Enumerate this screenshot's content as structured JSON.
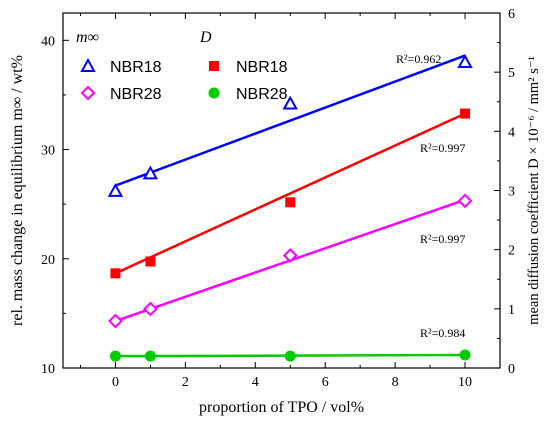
{
  "chart_data": {
    "type": "scatter",
    "xlabel": "proportion of TPO / vol%",
    "ylabel_left": "rel. mass change in equilibrium m∞ / wt%",
    "ylabel_right": "mean diffusion coefficient D × 10⁻⁶ / mm² s⁻¹",
    "xlim": [
      -1.5,
      11
    ],
    "ylim_left": [
      10,
      42.5
    ],
    "ylim_right": [
      0,
      6
    ],
    "x_ticks": [
      0,
      2,
      4,
      6,
      8,
      10
    ],
    "y_ticks_left": [
      10,
      20,
      30,
      40
    ],
    "y_ticks_right": [
      0,
      1,
      2,
      3,
      4,
      5,
      6
    ],
    "grid": false,
    "legend": {
      "placement": "top-left",
      "group_m": "m∞",
      "group_d": "D",
      "entries": [
        "NBR18",
        "NBR28",
        "NBR18",
        "NBR28"
      ]
    },
    "series": [
      {
        "name": "NBR18",
        "group": "m∞",
        "axis": "left",
        "marker": "triangle-open",
        "color": "#0000ff",
        "x": [
          0,
          1,
          5,
          10
        ],
        "y": [
          26.2,
          27.8,
          34.2,
          38.0
        ],
        "fit": [
          [
            0,
            26.7
          ],
          [
            10,
            38.6
          ]
        ],
        "r2": "R²=0.962"
      },
      {
        "name": "NBR28",
        "group": "m∞",
        "axis": "left",
        "marker": "diamond-open",
        "color": "#ff00ff",
        "x": [
          0,
          1,
          5,
          10
        ],
        "y": [
          14.3,
          15.4,
          20.3,
          25.3
        ],
        "fit": [
          [
            0,
            14.3
          ],
          [
            10,
            25.4
          ]
        ],
        "r2": "R²=0.997"
      },
      {
        "name": "NBR18",
        "group": "D",
        "axis": "right",
        "marker": "square",
        "color": "#ff0000",
        "x": [
          0,
          1,
          5,
          10
        ],
        "y": [
          1.6,
          1.8,
          2.8,
          4.3
        ],
        "fit": [
          [
            0,
            1.6
          ],
          [
            10,
            4.3
          ]
        ],
        "r2": "R²=0.997"
      },
      {
        "name": "NBR28",
        "group": "D",
        "axis": "right",
        "marker": "circle",
        "color": "#00cc00",
        "x": [
          0,
          1,
          5,
          10
        ],
        "y": [
          0.2,
          0.2,
          0.2,
          0.22
        ],
        "fit": [
          [
            0,
            0.2
          ],
          [
            10,
            0.22
          ]
        ],
        "r2": "R²=0.984"
      }
    ]
  }
}
